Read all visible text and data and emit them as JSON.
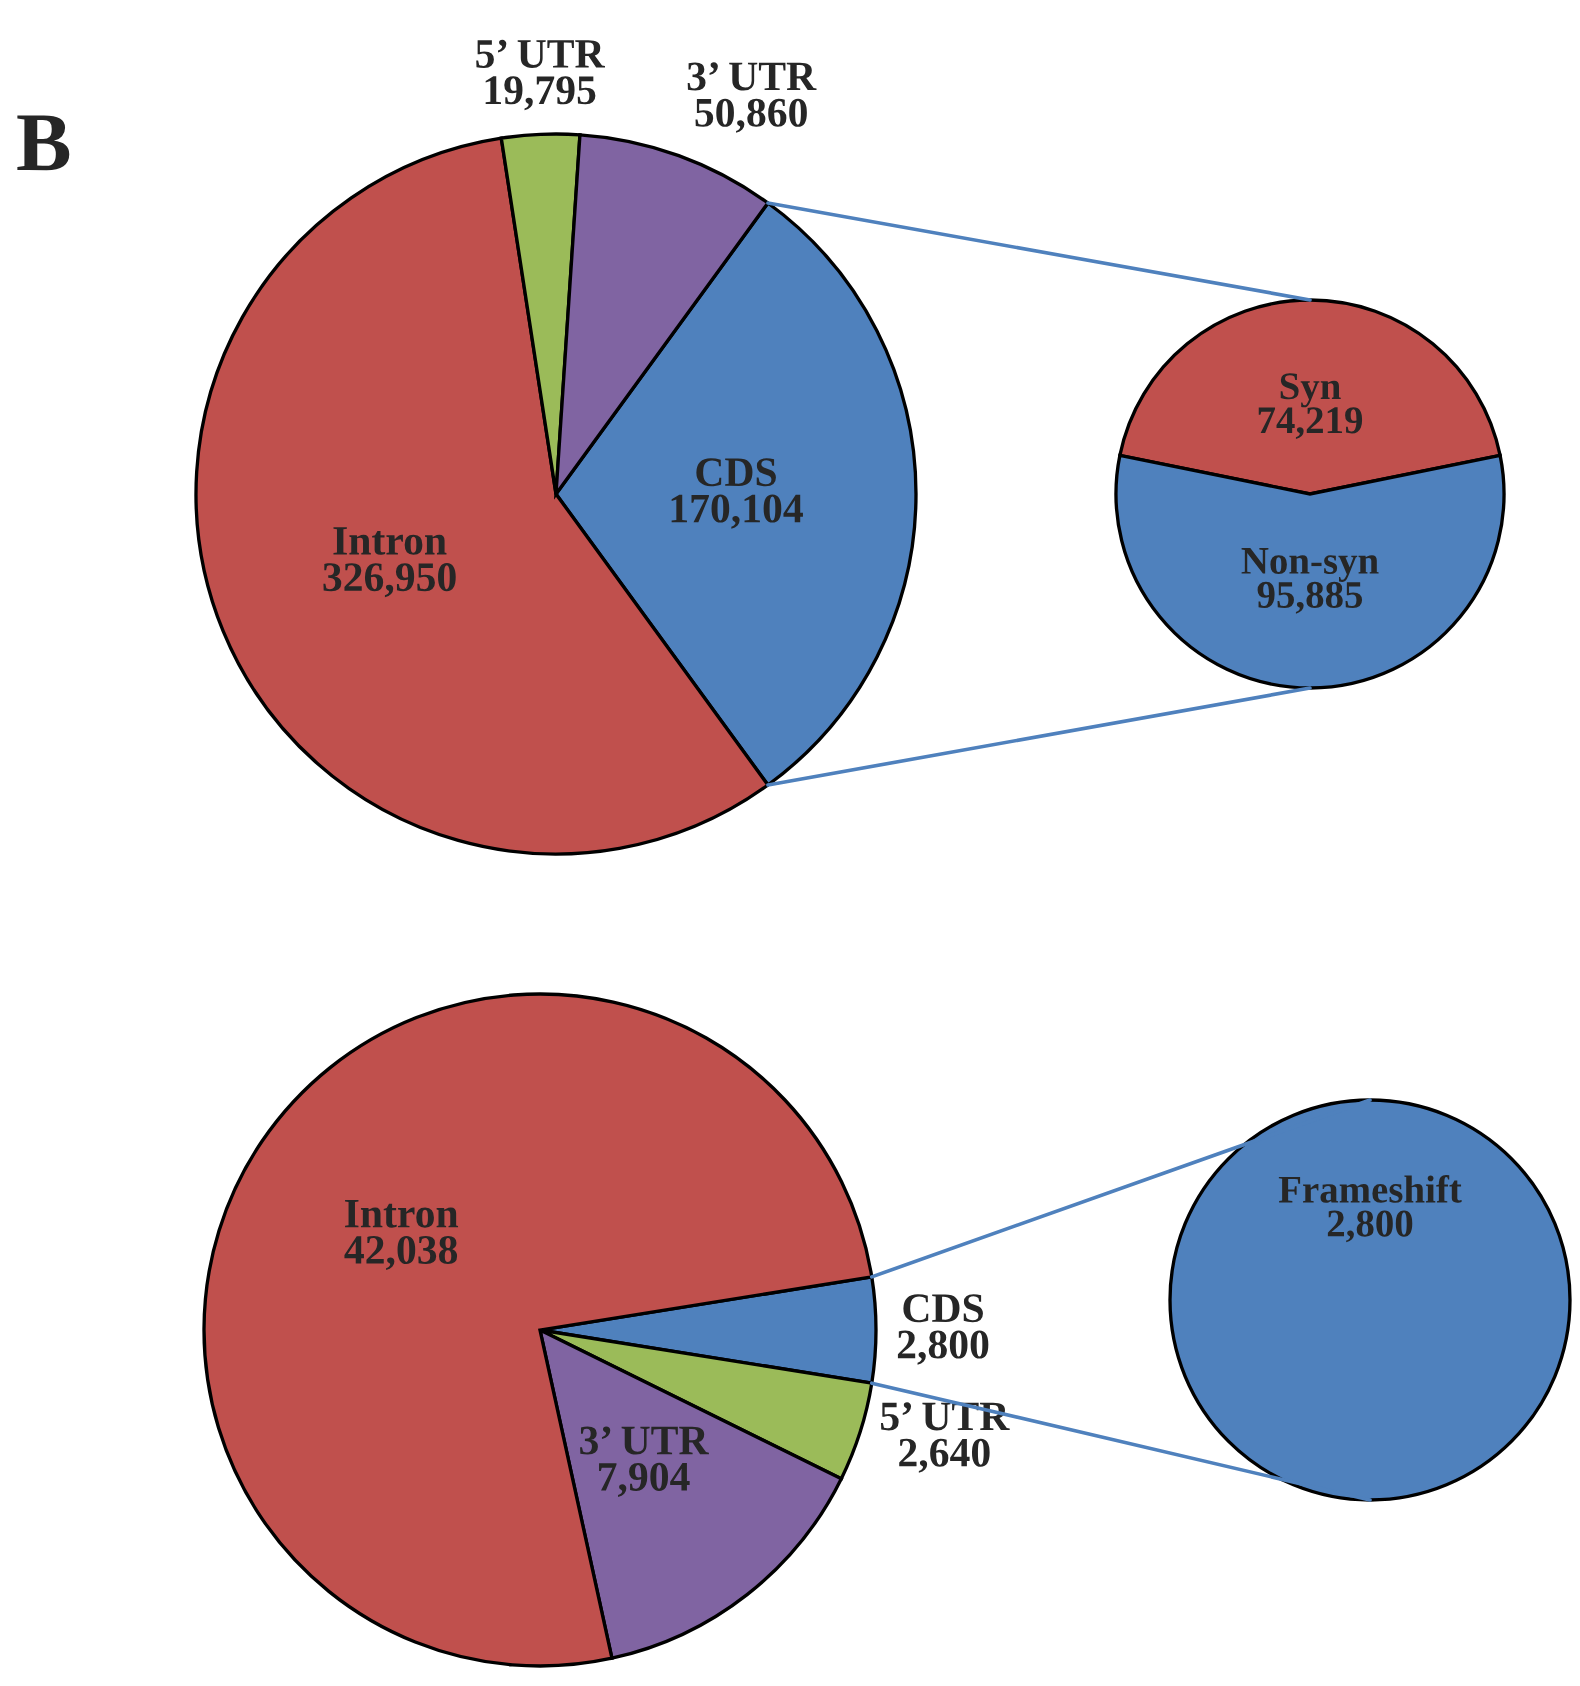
{
  "chart_data": [
    {
      "type": "pie",
      "annotations": [
        "B"
      ],
      "categories": [
        "CDS",
        "Intron",
        "5’ UTR",
        "3’ UTR"
      ],
      "values": [
        170104,
        326950,
        19795,
        50860
      ],
      "colors": [
        "#4f81bd",
        "#c0504d",
        "#9bbb59",
        "#8064a2"
      ],
      "value_labels": [
        "170,104",
        "326,950",
        "19,795",
        "50,860"
      ]
    },
    {
      "type": "pie",
      "categories": [
        "Syn",
        "Non-syn"
      ],
      "values": [
        74219,
        95885
      ],
      "colors": [
        "#c0504d",
        "#4f81bd"
      ],
      "value_labels": [
        "74,219",
        "95,885"
      ]
    },
    {
      "type": "pie",
      "categories": [
        "CDS",
        "5’ UTR",
        "3’ UTR",
        "Intron"
      ],
      "values": [
        2800,
        2640,
        7904,
        42038
      ],
      "colors": [
        "#4f81bd",
        "#9bbb59",
        "#8064a2",
        "#c0504d"
      ],
      "value_labels": [
        "2,800",
        "2,640",
        "7,904",
        "42,038"
      ]
    },
    {
      "type": "pie",
      "categories": [
        "Frameshift"
      ],
      "values": [
        2800
      ],
      "colors": [
        "#4f81bd"
      ],
      "value_labels": [
        "2,800"
      ]
    }
  ]
}
